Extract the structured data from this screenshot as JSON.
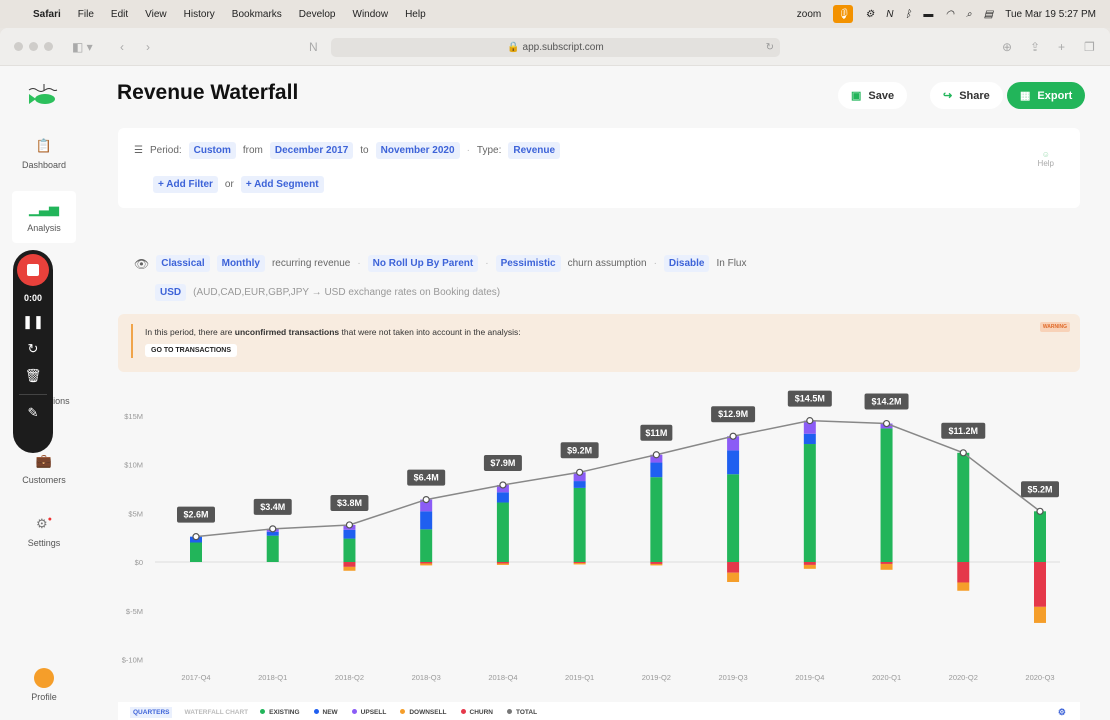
{
  "menubar": {
    "app": "Safari",
    "items": [
      "File",
      "Edit",
      "View",
      "History",
      "Bookmarks",
      "Develop",
      "Window",
      "Help"
    ],
    "zoom_label": "zoom",
    "clock": "Tue Mar 19  5:27 PM"
  },
  "browser": {
    "url": "app.subscript.com"
  },
  "sidebar": {
    "items": [
      {
        "label": "Dashboard",
        "icon": "clipboard-icon"
      },
      {
        "label": "Analysis",
        "icon": "bar-chart-icon"
      },
      {
        "label": "Transactions",
        "icon": "list-icon"
      },
      {
        "label": "Customers",
        "icon": "briefcase-icon"
      },
      {
        "label": "Settings",
        "icon": "gear-icon"
      }
    ],
    "profile": "Profile"
  },
  "recorder": {
    "time": "0:00"
  },
  "header": {
    "title": "Revenue Waterfall",
    "save": "Save",
    "share": "Share",
    "export": "Export"
  },
  "filters": {
    "period_label": "Period:",
    "period": "Custom",
    "from_label": "from",
    "from": "December 2017",
    "to_label": "to",
    "to": "November 2020",
    "type_label": "Type:",
    "type": "Revenue",
    "add_filter": "+ Add Filter",
    "or": "or",
    "add_segment": "+ Add Segment",
    "help": "Help"
  },
  "options": {
    "method": "Classical",
    "frequency": "Monthly",
    "frequency_text": "recurring revenue",
    "rollup": "No Roll Up By Parent",
    "churn": "Pessimistic",
    "churn_text": "churn assumption",
    "flux": "Disable",
    "flux_text": "In Flux",
    "currency": "USD",
    "currency_text": "(AUD,CAD,EUR,GBP,JPY → USD exchange rates on Booking dates)"
  },
  "warning": {
    "pre": "In this period, there are ",
    "bold": "unconfirmed transactions",
    "post": " that were not taken into account in the analysis:",
    "button": "GO TO TRANSACTIONS",
    "badge": "WARNING"
  },
  "legend": {
    "tab_quarters": "QUARTERS",
    "tab_waterfall": "WATERFALL CHART"
  },
  "chart_data": {
    "type": "bar",
    "stacked": true,
    "categories": [
      "2017-Q4",
      "2018-Q1",
      "2018-Q2",
      "2018-Q3",
      "2018-Q4",
      "2019-Q1",
      "2019-Q2",
      "2019-Q3",
      "2019-Q4",
      "2020-Q1",
      "2020-Q2",
      "2020-Q3"
    ],
    "yticks": [
      "$15M",
      "$10M",
      "$5M",
      "$0",
      "$-5M",
      "$-10M"
    ],
    "ylim": [
      -10,
      15
    ],
    "unit": "$M",
    "series": [
      {
        "name": "EXISTING",
        "color": "#22b55a",
        "values": [
          2.0,
          2.7,
          2.4,
          3.35,
          6.1,
          7.6,
          8.7,
          9.0,
          12.1,
          13.7,
          11.2,
          5.2
        ]
      },
      {
        "name": "NEW",
        "color": "#1f5ff0",
        "values": [
          0.6,
          0.4,
          0.9,
          1.85,
          1.05,
          0.7,
          1.5,
          2.45,
          1.05,
          0,
          0,
          0
        ]
      },
      {
        "name": "UPSELL",
        "color": "#8b5cf6",
        "values": [
          0,
          0.3,
          0.5,
          1.2,
          0.75,
          0.9,
          0.8,
          1.45,
          1.35,
          0.5,
          0,
          0
        ]
      },
      {
        "name": "DOWNSELL",
        "color": "#f59e2a",
        "values": [
          0,
          0,
          -0.4,
          -0.2,
          -0.15,
          -0.15,
          -0.15,
          -0.95,
          -0.4,
          -0.6,
          -0.85,
          -1.65
        ]
      },
      {
        "name": "CHURN",
        "color": "#e5384a",
        "values": [
          0,
          0,
          -0.5,
          -0.15,
          -0.15,
          -0.1,
          -0.2,
          -1.1,
          -0.3,
          -0.2,
          -2.1,
          -4.6
        ]
      },
      {
        "name": "TOTAL",
        "color": "#777777",
        "values": [
          2.6,
          3.4,
          3.8,
          6.4,
          7.9,
          9.2,
          11,
          12.9,
          14.5,
          14.2,
          11.2,
          5.2
        ],
        "labels": [
          "$2.6M",
          "$3.4M",
          "$3.8M",
          "$6.4M",
          "$7.9M",
          "$9.2M",
          "$11M",
          "$12.9M",
          "$14.5M",
          "$14.2M",
          "$11.2M",
          "$5.2M"
        ]
      }
    ],
    "legend_position": "bottom",
    "grid": false
  }
}
